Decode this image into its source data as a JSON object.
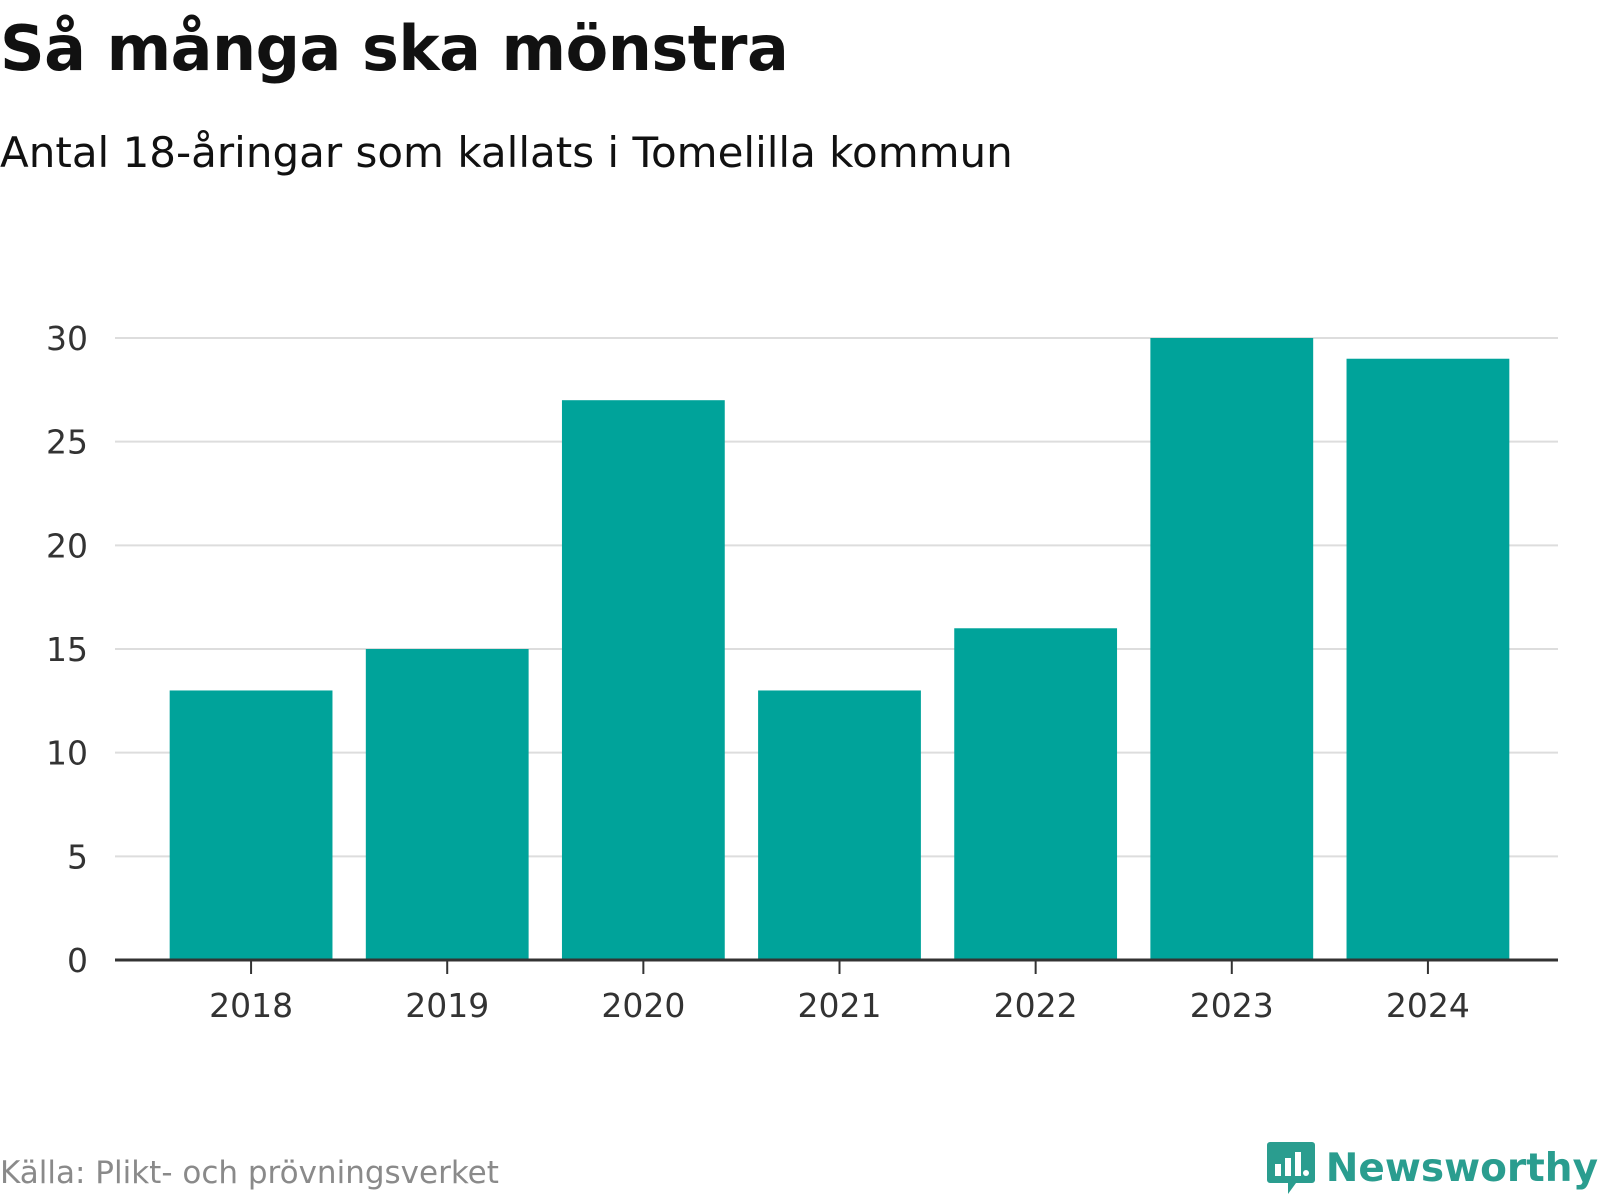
{
  "title": "Så många ska mönstra",
  "subtitle": "Antal 18-åringar som kallats i Tomelilla kommun",
  "source": "Källa: Plikt- och prövningsverket",
  "brand": {
    "name": "Newsworthy",
    "icon": "newsworthy-logo-icon",
    "color": "#2a9d8f"
  },
  "chart_data": {
    "type": "bar",
    "categories": [
      "2018",
      "2019",
      "2020",
      "2021",
      "2022",
      "2023",
      "2024"
    ],
    "series": [
      {
        "values": [
          13,
          15,
          27,
          13,
          16,
          30,
          29
        ]
      }
    ],
    "ylim": [
      0,
      30
    ],
    "yticks": [
      0,
      5,
      10,
      15,
      20,
      25,
      30
    ],
    "grid": true,
    "legend": "none",
    "bar_color": "#00a39a",
    "grid_color": "#dddddd",
    "axis_color": "#333333"
  }
}
